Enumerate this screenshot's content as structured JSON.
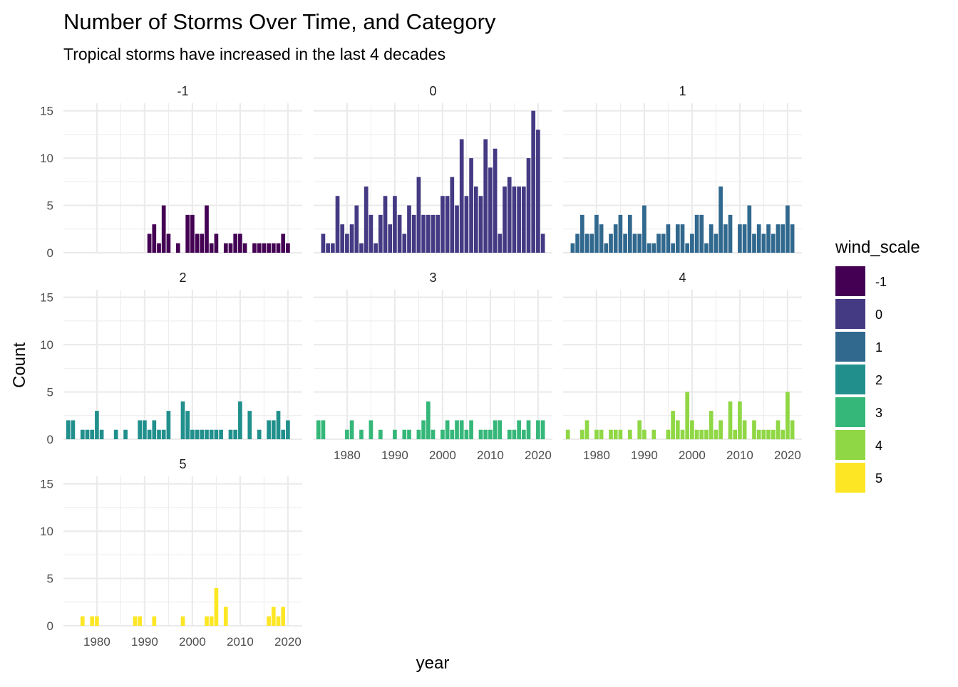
{
  "chart_data": {
    "type": "bar",
    "title": "Number of Storms Over Time, and Category",
    "subtitle": "Tropical storms have increased in the last 4 decades",
    "xlabel": "year",
    "ylabel": "Count",
    "xlim": [
      1973,
      2023
    ],
    "ylim": [
      0,
      16
    ],
    "x_ticks": [
      1980,
      1990,
      2000,
      2010,
      2020
    ],
    "x_tick_labels": [
      "1980",
      "1990",
      "2000",
      "2010",
      "2020"
    ],
    "y_ticks": [
      0,
      5,
      10,
      15
    ],
    "y_tick_labels": [
      "0",
      "5",
      "10",
      "15"
    ],
    "grid": true,
    "legend": {
      "title": "wind_scale",
      "position": "right",
      "entries": [
        {
          "label": "-1",
          "color": "#440154"
        },
        {
          "label": "0",
          "color": "#443A83"
        },
        {
          "label": "1",
          "color": "#31688E"
        },
        {
          "label": "2",
          "color": "#21908D"
        },
        {
          "label": "3",
          "color": "#35B779"
        },
        {
          "label": "4",
          "color": "#8FD744"
        },
        {
          "label": "5",
          "color": "#FDE725"
        }
      ]
    },
    "series": [
      {
        "name": "-1",
        "color": "#440154",
        "x": [
          1991,
          1992,
          1993,
          1994,
          1995,
          1997,
          1999,
          2000,
          2001,
          2002,
          2003,
          2004,
          2005,
          2007,
          2008,
          2009,
          2010,
          2011,
          2013,
          2014,
          2015,
          2016,
          2017,
          2018,
          2019,
          2020
        ],
        "values": [
          2,
          3,
          1,
          5,
          2,
          1,
          4,
          4,
          2,
          2,
          5,
          1,
          2,
          1,
          1,
          2,
          2,
          1,
          1,
          1,
          1,
          1,
          1,
          1,
          2,
          1
        ]
      },
      {
        "name": "0",
        "color": "#443A83",
        "x": [
          1975,
          1976,
          1977,
          1978,
          1979,
          1980,
          1981,
          1982,
          1983,
          1984,
          1985,
          1986,
          1987,
          1988,
          1989,
          1990,
          1991,
          1992,
          1993,
          1994,
          1995,
          1996,
          1997,
          1998,
          1999,
          2000,
          2001,
          2002,
          2003,
          2004,
          2005,
          2006,
          2007,
          2008,
          2009,
          2010,
          2011,
          2012,
          2013,
          2014,
          2015,
          2016,
          2017,
          2018,
          2019,
          2020,
          2021
        ],
        "values": [
          2,
          1,
          1,
          6,
          3,
          2,
          3,
          5,
          1,
          7,
          4,
          1,
          4,
          6,
          3,
          6,
          4,
          2,
          5,
          4,
          8,
          4,
          4,
          4,
          4,
          6,
          6,
          8,
          5,
          12,
          6,
          10,
          7,
          6,
          12,
          9,
          11,
          2,
          7,
          8,
          7,
          7,
          7,
          10,
          15,
          13,
          2
        ]
      },
      {
        "name": "1",
        "color": "#31688E",
        "x": [
          1975,
          1976,
          1977,
          1978,
          1979,
          1980,
          1981,
          1982,
          1983,
          1984,
          1985,
          1986,
          1987,
          1988,
          1989,
          1990,
          1991,
          1992,
          1993,
          1994,
          1995,
          1996,
          1997,
          1998,
          1999,
          2000,
          2001,
          2002,
          2003,
          2004,
          2005,
          2006,
          2007,
          2008,
          2010,
          2011,
          2012,
          2013,
          2014,
          2015,
          2016,
          2017,
          2018,
          2019,
          2020,
          2021
        ],
        "values": [
          1,
          2,
          4,
          2,
          2,
          4,
          3,
          1,
          2,
          3,
          4,
          2,
          4,
          2,
          2,
          5,
          1,
          1,
          2,
          2,
          3,
          1,
          3,
          3,
          1,
          2,
          4,
          4,
          1,
          3,
          2,
          7,
          3,
          4,
          3,
          3,
          5,
          2,
          3,
          2,
          3,
          2,
          3,
          3,
          5,
          3
        ]
      },
      {
        "name": "2",
        "color": "#21908D",
        "x": [
          1974,
          1975,
          1977,
          1978,
          1979,
          1980,
          1981,
          1984,
          1986,
          1989,
          1990,
          1991,
          1992,
          1993,
          1994,
          1995,
          1998,
          1999,
          2000,
          2001,
          2002,
          2003,
          2004,
          2005,
          2006,
          2008,
          2009,
          2010,
          2012,
          2014,
          2016,
          2017,
          2018,
          2019,
          2020
        ],
        "values": [
          2,
          2,
          1,
          1,
          1,
          3,
          1,
          1,
          1,
          2,
          2,
          1,
          2,
          1,
          1,
          3,
          4,
          3,
          1,
          1,
          1,
          1,
          1,
          1,
          1,
          1,
          1,
          4,
          3,
          1,
          2,
          2,
          3,
          1,
          2
        ]
      },
      {
        "name": "3",
        "color": "#35B779",
        "x": [
          1974,
          1975,
          1980,
          1981,
          1983,
          1985,
          1987,
          1990,
          1992,
          1993,
          1995,
          1996,
          1997,
          1998,
          2000,
          2001,
          2002,
          2003,
          2004,
          2005,
          2006,
          2008,
          2009,
          2010,
          2011,
          2012,
          2014,
          2015,
          2016,
          2017,
          2018,
          2020,
          2021
        ],
        "values": [
          2,
          2,
          1,
          2,
          1,
          2,
          1,
          1,
          1,
          1,
          1,
          2,
          4,
          1,
          1,
          2,
          1,
          2,
          2,
          1,
          2,
          1,
          1,
          1,
          2,
          2,
          1,
          1,
          2,
          1,
          2,
          2,
          2
        ]
      },
      {
        "name": "4",
        "color": "#8FD744",
        "x": [
          1974,
          1977,
          1978,
          1980,
          1981,
          1983,
          1984,
          1985,
          1987,
          1989,
          1990,
          1992,
          1995,
          1996,
          1997,
          1998,
          1999,
          2000,
          2001,
          2002,
          2003,
          2004,
          2005,
          2006,
          2008,
          2009,
          2010,
          2011,
          2013,
          2014,
          2015,
          2016,
          2017,
          2018,
          2019,
          2020,
          2021
        ],
        "values": [
          1,
          1,
          2,
          1,
          1,
          1,
          1,
          1,
          1,
          2,
          1,
          1,
          1,
          3,
          2,
          1,
          5,
          2,
          1,
          1,
          1,
          3,
          1,
          2,
          4,
          1,
          4,
          2,
          2,
          1,
          1,
          1,
          1,
          2,
          1,
          5,
          2
        ]
      },
      {
        "name": "5",
        "color": "#FDE725",
        "x": [
          1977,
          1979,
          1980,
          1988,
          1989,
          1992,
          1998,
          2003,
          2004,
          2005,
          2007,
          2016,
          2017,
          2018,
          2019
        ],
        "values": [
          1,
          1,
          1,
          1,
          1,
          1,
          1,
          1,
          1,
          4,
          2,
          1,
          2,
          1,
          2
        ]
      }
    ]
  }
}
